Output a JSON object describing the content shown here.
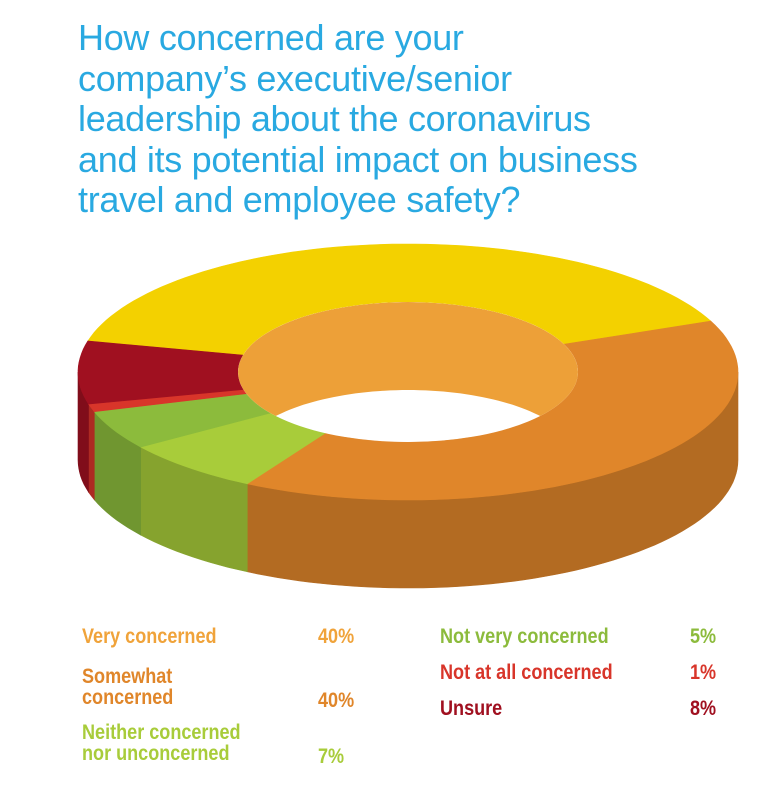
{
  "chart_data": {
    "type": "pie",
    "title": "How concerned are your\ncompany’s executive/senior\nleadership about the coronavirus\nand its potential impact on business\ntravel and employee safety?",
    "slices": [
      {
        "label": "Very concerned",
        "value": 40,
        "value_label": "40%",
        "color": "#f3d100",
        "legend_color": "#f0a33a"
      },
      {
        "label": "Somewhat\nconcerned",
        "value": 40,
        "value_label": "40%",
        "color": "#e0862a",
        "legend_color": "#e0862a"
      },
      {
        "label": "Neither concerned\nnor unconcerned",
        "value": 7,
        "value_label": "7%",
        "color": "#a8cc3a",
        "legend_color": "#a8cc3a"
      },
      {
        "label": "Not very concerned",
        "value": 5,
        "value_label": "5%",
        "color": "#8cbb3c",
        "legend_color": "#8cbb3c"
      },
      {
        "label": "Not at all concerned",
        "value": 1,
        "value_label": "1%",
        "color": "#d8352a",
        "legend_color": "#d8352a"
      },
      {
        "label": "Unsure",
        "value": 8,
        "value_label": "8%",
        "color": "#a01020",
        "legend_color": "#a01020"
      }
    ],
    "inner_color": "#eda038",
    "legend_placement": "bottom",
    "grid": false
  }
}
